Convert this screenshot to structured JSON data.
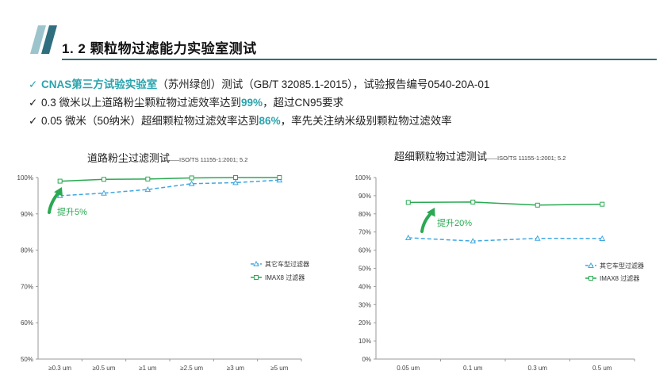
{
  "header": {
    "title": "1. 2  颗粒物过滤能力实验室测试",
    "accent_color": "#2f6f7f",
    "bar_light_color": "#9cc4cc"
  },
  "bullets": [
    {
      "prefix": "CNAS第三方试验实验室",
      "text": "（苏州绿创）测试（GB/T 32085.1-2015），试验报告编号0540-20A-01"
    },
    {
      "pre": "0.3 微米以上道路粉尘颗粒物过滤效率达到",
      "highlight": "99%",
      "post": "，超过CN95要求"
    },
    {
      "pre": "0.05 微米（50纳米）超细颗粒物过滤效率达到",
      "highlight": "86%",
      "post": "，率先关注纳米级别颗粒物过滤效率"
    }
  ],
  "chart_data": [
    {
      "type": "line",
      "title": "道路粉尘过滤测试",
      "subtitle": "——ISO/TS 11155-1:2001; 5.2",
      "categories": [
        "≥0.3 um",
        "≥0.5 um",
        "≥1 um",
        "≥2.5 um",
        "≥3 um",
        "≥5 um"
      ],
      "y_ticks": [
        "100%",
        "90%",
        "80%",
        "70%",
        "60%",
        "50%"
      ],
      "ylim": [
        50,
        100
      ],
      "grid": false,
      "legend_position": "right",
      "series": [
        {
          "name": "其它车型过滤器",
          "values": [
            95.0,
            95.7,
            96.7,
            98.3,
            98.6,
            99.3
          ],
          "color": "#3fa7e0",
          "style": "dashed",
          "marker": "triangle"
        },
        {
          "name": "IMAX8 过滤器",
          "values": [
            99.0,
            99.5,
            99.6,
            99.9,
            100.0,
            100.0
          ],
          "color": "#2aa952",
          "style": "solid",
          "marker": "square"
        }
      ],
      "annotation": "提升5%"
    },
    {
      "type": "line",
      "title": "超细颗粒物过滤测试",
      "subtitle": "——ISO/TS 11155-1:2001; 5.2",
      "categories": [
        "0.05 um",
        "0.1 um",
        "0.3 um",
        "0.5 um"
      ],
      "y_ticks": [
        "100%",
        "90%",
        "80%",
        "70%",
        "60%",
        "50%",
        "40%",
        "30%",
        "20%",
        "10%",
        "0%"
      ],
      "ylim": [
        0,
        100
      ],
      "grid": false,
      "legend_position": "right",
      "series": [
        {
          "name": "其它车型过滤器",
          "values": [
            66.8,
            65.0,
            66.5,
            66.4
          ],
          "color": "#3fa7e0",
          "style": "dashed",
          "marker": "triangle"
        },
        {
          "name": "IMAX8 过滤器",
          "values": [
            86.3,
            86.5,
            84.8,
            85.3
          ],
          "color": "#2aa952",
          "style": "solid",
          "marker": "square"
        }
      ],
      "annotation": "提升20%"
    }
  ]
}
